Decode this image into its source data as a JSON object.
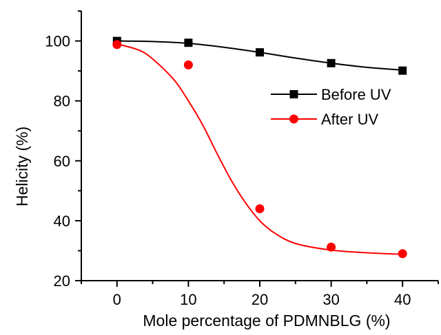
{
  "chart_data": {
    "type": "scatter",
    "title": "",
    "xlabel": "Mole percentage of PDMNBLG (%)",
    "ylabel": "Helicity (%)",
    "xlim": [
      -5,
      45
    ],
    "ylim": [
      20,
      110
    ],
    "xticks": [
      0,
      10,
      20,
      30,
      40
    ],
    "yticks": [
      20,
      40,
      60,
      80,
      100
    ],
    "x_tick_labels": [
      "0",
      "10",
      "20",
      "30",
      "40"
    ],
    "y_tick_labels": [
      "20",
      "40",
      "60",
      "80",
      "100"
    ],
    "grid": false,
    "legend_position": "right, upper-middle",
    "series": [
      {
        "name": "Before UV",
        "marker": "square",
        "color": "#000000",
        "x": [
          0,
          10,
          20,
          30,
          40
        ],
        "y": [
          100,
          99.4,
          96.2,
          92.6,
          90.1
        ],
        "fit_curve": [
          [
            0,
            100
          ],
          [
            5,
            99.8
          ],
          [
            10,
            99.2
          ],
          [
            15,
            97.9
          ],
          [
            20,
            96.2
          ],
          [
            25,
            94.3
          ],
          [
            30,
            92.6
          ],
          [
            35,
            91.2
          ],
          [
            40,
            90.3
          ]
        ]
      },
      {
        "name": "After UV",
        "marker": "circle",
        "color": "#ff0000",
        "x": [
          0,
          10,
          20,
          30,
          40
        ],
        "y": [
          98.8,
          92,
          44,
          31.2,
          29
        ],
        "fit_curve": [
          [
            0,
            99
          ],
          [
            3,
            97
          ],
          [
            5,
            94
          ],
          [
            8,
            87
          ],
          [
            10,
            80
          ],
          [
            12,
            72
          ],
          [
            14,
            62.5
          ],
          [
            16,
            53.5
          ],
          [
            18,
            46
          ],
          [
            20,
            40
          ],
          [
            22,
            36
          ],
          [
            25,
            32.4
          ],
          [
            30,
            30.2
          ],
          [
            35,
            29.3
          ],
          [
            40,
            28.8
          ]
        ]
      }
    ]
  }
}
